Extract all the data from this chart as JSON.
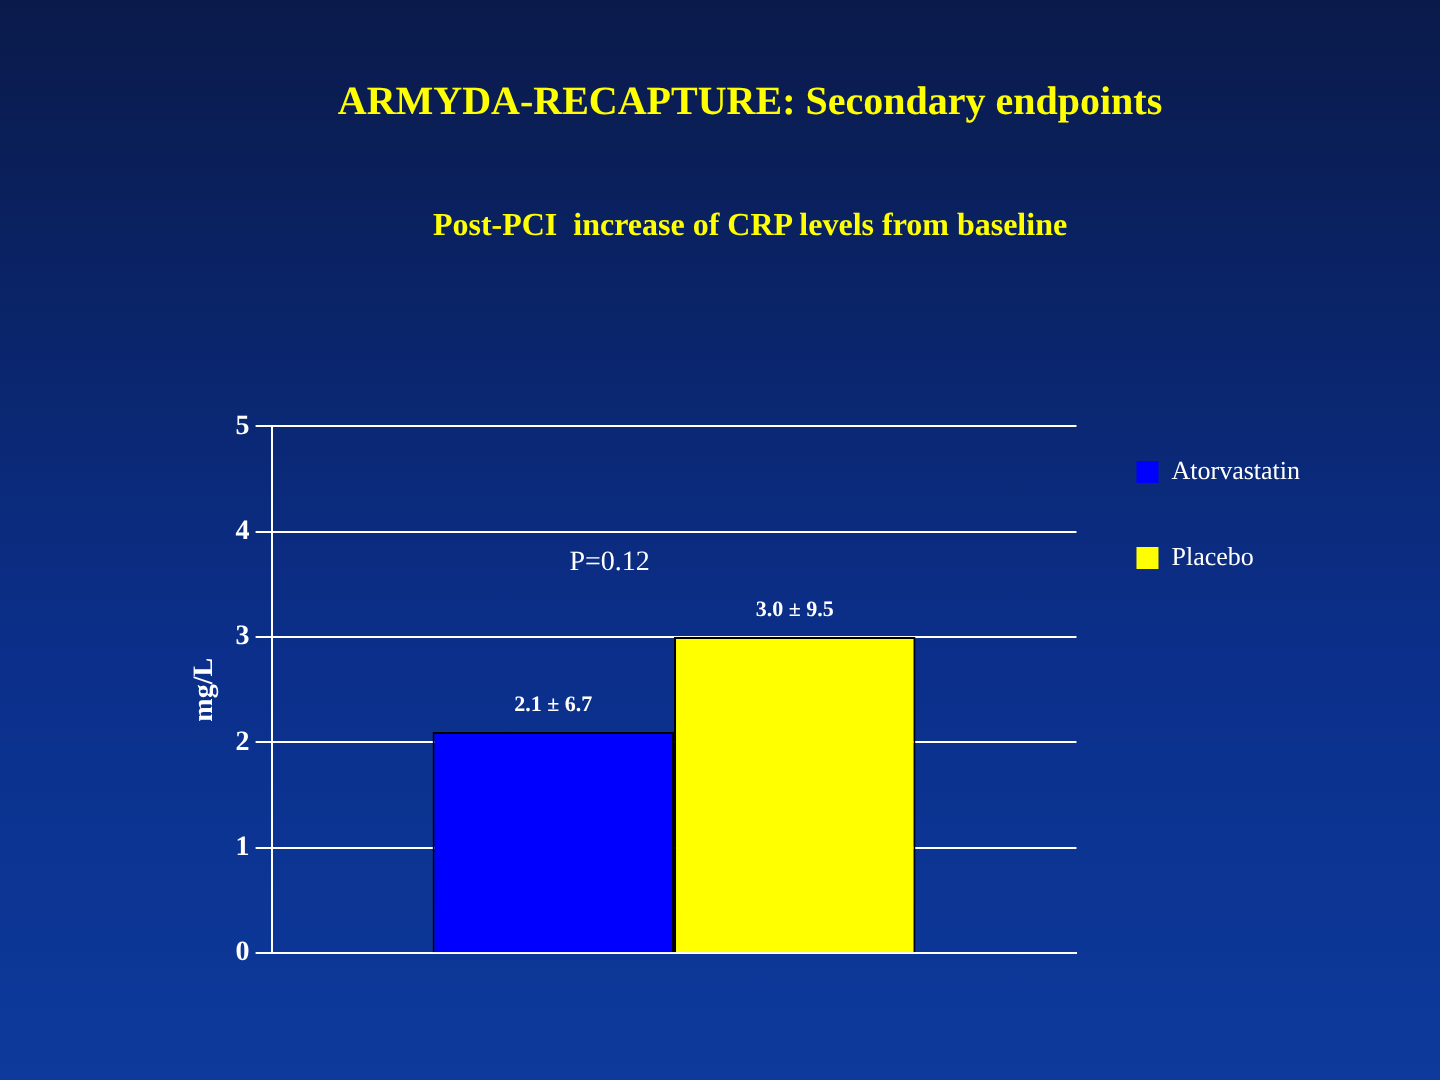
{
  "chart_data": {
    "type": "bar",
    "title": "ARMYDA-RECAPTURE: Secondary endpoints",
    "subtitle": "Post-PCI  increase of CRP levels from baseline",
    "ylabel": "mg/L",
    "categories": [
      null
    ],
    "series": [
      {
        "name": "Atorvastatin",
        "color": "#0000ff",
        "values": [
          2.1
        ],
        "value_labels": [
          "2.1 ± 6.7"
        ]
      },
      {
        "name": "Placebo",
        "color": "#ffff00",
        "values": [
          3.0
        ],
        "value_labels": [
          "3.0 ± 9.5"
        ]
      }
    ],
    "ylim": [
      0,
      5
    ],
    "yticks": [
      0,
      1,
      2,
      3,
      4,
      5
    ],
    "grid": "y",
    "legend": "right",
    "annotations": [
      "P=0.12"
    ]
  }
}
